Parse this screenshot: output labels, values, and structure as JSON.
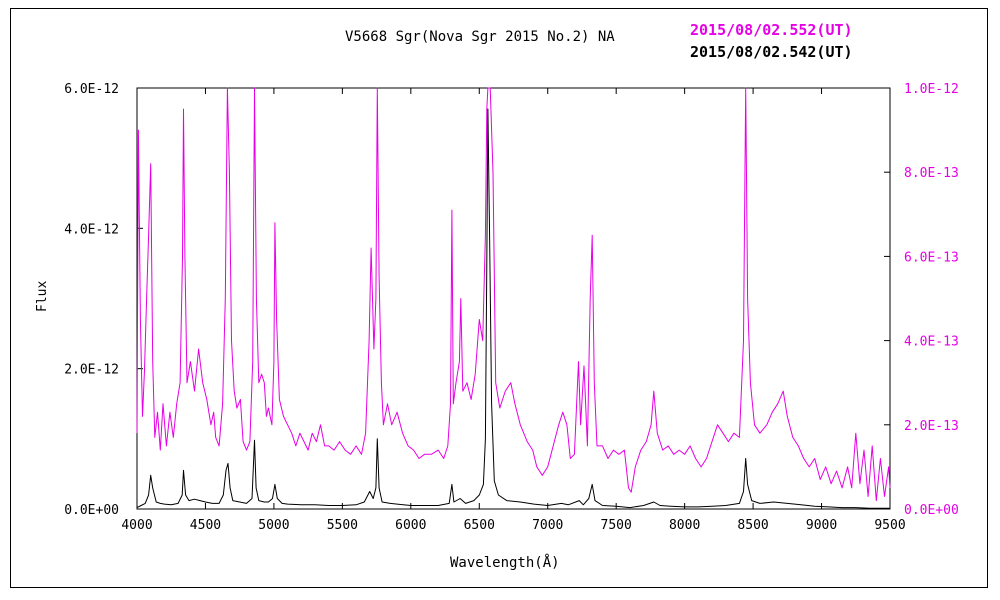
{
  "chart_data": {
    "type": "line",
    "title": "V5668 Sgr(Nova Sgr 2015 No.2)   NA",
    "xlabel": "Wavelength(Å)",
    "ylabel": "Flux",
    "xlim": [
      4000,
      9500
    ],
    "ylim_left": [
      0,
      6e-12
    ],
    "ylim_right": [
      0,
      1e-12
    ],
    "x_ticks": [
      "4000",
      "4500",
      "5000",
      "5500",
      "6000",
      "6500",
      "7000",
      "7500",
      "8000",
      "8500",
      "9000",
      "9500"
    ],
    "y_ticks_left": [
      "0.0E+00",
      "2.0E-12",
      "4.0E-12",
      "6.0E-12"
    ],
    "y_ticks_right": [
      "0.0E+00",
      "2.0E-13",
      "4.0E-13",
      "6.0E-13",
      "8.0E-13",
      "1.0E-12"
    ],
    "grid": false,
    "legend": {
      "placement": "top-right"
    },
    "series": [
      {
        "name": "2015/08/02.552(UT)",
        "axis": "right",
        "color": "#e600e6",
        "points": [
          [
            4000,
            1.8e-13
          ],
          [
            4010,
            9e-13
          ],
          [
            4025,
            4.5e-13
          ],
          [
            4040,
            2.2e-13
          ],
          [
            4055,
            3.3e-13
          ],
          [
            4070,
            5e-13
          ],
          [
            4085,
            6.5e-13
          ],
          [
            4100,
            8.2e-13
          ],
          [
            4115,
            3.5e-13
          ],
          [
            4130,
            1.7e-13
          ],
          [
            4150,
            2.3e-13
          ],
          [
            4170,
            1.4e-13
          ],
          [
            4190,
            2.5e-13
          ],
          [
            4215,
            1.5e-13
          ],
          [
            4240,
            2.3e-13
          ],
          [
            4265,
            1.7e-13
          ],
          [
            4290,
            2.5e-13
          ],
          [
            4315,
            3e-13
          ],
          [
            4332,
            6e-13
          ],
          [
            4340,
            9.5e-13
          ],
          [
            4350,
            6e-13
          ],
          [
            4365,
            3e-13
          ],
          [
            4390,
            3.5e-13
          ],
          [
            4420,
            2.8e-13
          ],
          [
            4450,
            3.8e-13
          ],
          [
            4480,
            3e-13
          ],
          [
            4510,
            2.6e-13
          ],
          [
            4540,
            2e-13
          ],
          [
            4560,
            2.3e-13
          ],
          [
            4575,
            1.7e-13
          ],
          [
            4600,
            1.5e-13
          ],
          [
            4625,
            2.5e-13
          ],
          [
            4645,
            5e-13
          ],
          [
            4660,
            1e-12
          ],
          [
            4675,
            8e-13
          ],
          [
            4690,
            4e-13
          ],
          [
            4710,
            2.8e-13
          ],
          [
            4730,
            2.4e-13
          ],
          [
            4755,
            2.6e-13
          ],
          [
            4775,
            1.6e-13
          ],
          [
            4800,
            1.4e-13
          ],
          [
            4825,
            1.6e-13
          ],
          [
            4845,
            3.5e-13
          ],
          [
            4858,
            1e-12
          ],
          [
            4872,
            5e-13
          ],
          [
            4890,
            3e-13
          ],
          [
            4910,
            3.2e-13
          ],
          [
            4930,
            3e-13
          ],
          [
            4945,
            2.2e-13
          ],
          [
            4960,
            2.4e-13
          ],
          [
            4985,
            2e-13
          ],
          [
            5000,
            3.5e-13
          ],
          [
            5007,
            6.8e-13
          ],
          [
            5020,
            4.5e-13
          ],
          [
            5040,
            2.6e-13
          ],
          [
            5070,
            2.2e-13
          ],
          [
            5100,
            2e-13
          ],
          [
            5130,
            1.8e-13
          ],
          [
            5160,
            1.5e-13
          ],
          [
            5190,
            1.8e-13
          ],
          [
            5220,
            1.6e-13
          ],
          [
            5250,
            1.4e-13
          ],
          [
            5280,
            1.8e-13
          ],
          [
            5310,
            1.6e-13
          ],
          [
            5340,
            2e-13
          ],
          [
            5370,
            1.5e-13
          ],
          [
            5400,
            1.5e-13
          ],
          [
            5440,
            1.4e-13
          ],
          [
            5480,
            1.6e-13
          ],
          [
            5520,
            1.4e-13
          ],
          [
            5560,
            1.3e-13
          ],
          [
            5600,
            1.5e-13
          ],
          [
            5640,
            1.3e-13
          ],
          [
            5670,
            1.8e-13
          ],
          [
            5695,
            4e-13
          ],
          [
            5710,
            6.2e-13
          ],
          [
            5730,
            3.8e-13
          ],
          [
            5745,
            5e-13
          ],
          [
            5755,
            1e-12
          ],
          [
            5768,
            5.5e-13
          ],
          [
            5785,
            3e-13
          ],
          [
            5800,
            2e-13
          ],
          [
            5830,
            2.5e-13
          ],
          [
            5860,
            2e-13
          ],
          [
            5900,
            2.3e-13
          ],
          [
            5940,
            1.8e-13
          ],
          [
            5980,
            1.5e-13
          ],
          [
            6020,
            1.4e-13
          ],
          [
            6060,
            1.2e-13
          ],
          [
            6100,
            1.3e-13
          ],
          [
            6150,
            1.3e-13
          ],
          [
            6200,
            1.4e-13
          ],
          [
            6240,
            1.2e-13
          ],
          [
            6270,
            1.5e-13
          ],
          [
            6290,
            2.5e-13
          ],
          [
            6300,
            7.1e-13
          ],
          [
            6310,
            2.5e-13
          ],
          [
            6330,
            3e-13
          ],
          [
            6355,
            3.5e-13
          ],
          [
            6365,
            5e-13
          ],
          [
            6380,
            2.8e-13
          ],
          [
            6410,
            3e-13
          ],
          [
            6440,
            2.6e-13
          ],
          [
            6470,
            3.2e-13
          ],
          [
            6500,
            4.5e-13
          ],
          [
            6525,
            4e-13
          ],
          [
            6545,
            6.5e-13
          ],
          [
            6555,
            9.5e-13
          ],
          [
            6563,
            1e-12
          ],
          [
            6580,
            1e-12
          ],
          [
            6600,
            8e-13
          ],
          [
            6620,
            3e-13
          ],
          [
            6650,
            2.4e-13
          ],
          [
            6690,
            2.8e-13
          ],
          [
            6730,
            3e-13
          ],
          [
            6760,
            2.5e-13
          ],
          [
            6800,
            2e-13
          ],
          [
            6850,
            1.6e-13
          ],
          [
            6890,
            1.4e-13
          ],
          [
            6920,
            1e-13
          ],
          [
            6960,
            8e-14
          ],
          [
            7000,
            1e-13
          ],
          [
            7040,
            1.5e-13
          ],
          [
            7080,
            2e-13
          ],
          [
            7110,
            2.3e-13
          ],
          [
            7140,
            2e-13
          ],
          [
            7165,
            1.2e-13
          ],
          [
            7195,
            1.3e-13
          ],
          [
            7225,
            3.5e-13
          ],
          [
            7240,
            2e-13
          ],
          [
            7265,
            3.4e-13
          ],
          [
            7290,
            1.5e-13
          ],
          [
            7310,
            5e-13
          ],
          [
            7325,
            6.5e-13
          ],
          [
            7340,
            3e-13
          ],
          [
            7360,
            1.5e-13
          ],
          [
            7400,
            1.5e-13
          ],
          [
            7440,
            1.2e-13
          ],
          [
            7480,
            1.4e-13
          ],
          [
            7520,
            1.3e-13
          ],
          [
            7560,
            1.4e-13
          ],
          [
            7590,
            5e-14
          ],
          [
            7610,
            4e-14
          ],
          [
            7640,
            1e-13
          ],
          [
            7680,
            1.4e-13
          ],
          [
            7720,
            1.6e-13
          ],
          [
            7755,
            2e-13
          ],
          [
            7775,
            2.8e-13
          ],
          [
            7800,
            1.8e-13
          ],
          [
            7840,
            1.4e-13
          ],
          [
            7880,
            1.5e-13
          ],
          [
            7920,
            1.3e-13
          ],
          [
            7960,
            1.4e-13
          ],
          [
            8000,
            1.3e-13
          ],
          [
            8040,
            1.5e-13
          ],
          [
            8080,
            1.2e-13
          ],
          [
            8120,
            1e-13
          ],
          [
            8160,
            1.2e-13
          ],
          [
            8200,
            1.6e-13
          ],
          [
            8240,
            2e-13
          ],
          [
            8280,
            1.8e-13
          ],
          [
            8320,
            1.6e-13
          ],
          [
            8360,
            1.8e-13
          ],
          [
            8400,
            1.7e-13
          ],
          [
            8430,
            4e-13
          ],
          [
            8446,
            1e-12
          ],
          [
            8460,
            5e-13
          ],
          [
            8480,
            3e-13
          ],
          [
            8510,
            2e-13
          ],
          [
            8550,
            1.8e-13
          ],
          [
            8600,
            2e-13
          ],
          [
            8640,
            2.3e-13
          ],
          [
            8680,
            2.5e-13
          ],
          [
            8720,
            2.8e-13
          ],
          [
            8750,
            2.2e-13
          ],
          [
            8790,
            1.7e-13
          ],
          [
            8830,
            1.5e-13
          ],
          [
            8870,
            1.2e-13
          ],
          [
            8910,
            1e-13
          ],
          [
            8950,
            1.2e-13
          ],
          [
            8990,
            7e-14
          ],
          [
            9030,
            1e-13
          ],
          [
            9070,
            6e-14
          ],
          [
            9110,
            9e-14
          ],
          [
            9150,
            5e-14
          ],
          [
            9190,
            1e-13
          ],
          [
            9220,
            5e-14
          ],
          [
            9250,
            1.8e-13
          ],
          [
            9280,
            6e-14
          ],
          [
            9310,
            1.4e-13
          ],
          [
            9340,
            3e-14
          ],
          [
            9370,
            1.5e-13
          ],
          [
            9400,
            2e-14
          ],
          [
            9430,
            1.2e-13
          ],
          [
            9460,
            3e-14
          ],
          [
            9490,
            1e-13
          ],
          [
            9500,
            5e-14
          ]
        ]
      },
      {
        "name": "2015/08/02.542(UT)",
        "axis": "left",
        "color": "#000000",
        "points": [
          [
            4000,
            2e-14
          ],
          [
            4030,
            5e-14
          ],
          [
            4060,
            8e-14
          ],
          [
            4085,
            2e-13
          ],
          [
            4100,
            4.8e-13
          ],
          [
            4115,
            3e-13
          ],
          [
            4140,
            1e-13
          ],
          [
            4170,
            8e-14
          ],
          [
            4200,
            7e-14
          ],
          [
            4250,
            6e-14
          ],
          [
            4300,
            8e-14
          ],
          [
            4330,
            2e-13
          ],
          [
            4340,
            5.5e-13
          ],
          [
            4355,
            2e-13
          ],
          [
            4380,
            1.2e-13
          ],
          [
            4420,
            1.4e-13
          ],
          [
            4460,
            1.2e-13
          ],
          [
            4500,
            1e-13
          ],
          [
            4550,
            8e-14
          ],
          [
            4600,
            8e-14
          ],
          [
            4630,
            2e-13
          ],
          [
            4650,
            5.5e-13
          ],
          [
            4665,
            6.5e-13
          ],
          [
            4680,
            3e-13
          ],
          [
            4700,
            1.2e-13
          ],
          [
            4750,
            1e-13
          ],
          [
            4800,
            8e-14
          ],
          [
            4840,
            1.5e-13
          ],
          [
            4858,
            9.8e-13
          ],
          [
            4870,
            3e-13
          ],
          [
            4890,
            1.2e-13
          ],
          [
            4930,
            1e-13
          ],
          [
            4960,
            1e-13
          ],
          [
            4990,
            1.5e-13
          ],
          [
            5007,
            3.5e-13
          ],
          [
            5025,
            1.5e-13
          ],
          [
            5060,
            8e-14
          ],
          [
            5100,
            7e-14
          ],
          [
            5200,
            6e-14
          ],
          [
            5300,
            6e-14
          ],
          [
            5400,
            5e-14
          ],
          [
            5500,
            5e-14
          ],
          [
            5600,
            6e-14
          ],
          [
            5660,
            1e-13
          ],
          [
            5700,
            2.5e-13
          ],
          [
            5725,
            1.5e-13
          ],
          [
            5745,
            3e-13
          ],
          [
            5755,
            1e-12
          ],
          [
            5768,
            3e-13
          ],
          [
            5790,
            1e-13
          ],
          [
            5850,
            8e-14
          ],
          [
            5900,
            7e-14
          ],
          [
            6000,
            5e-14
          ],
          [
            6100,
            5e-14
          ],
          [
            6200,
            5e-14
          ],
          [
            6280,
            8e-14
          ],
          [
            6300,
            3.5e-13
          ],
          [
            6315,
            1e-13
          ],
          [
            6360,
            1.5e-13
          ],
          [
            6400,
            8e-14
          ],
          [
            6460,
            1.2e-13
          ],
          [
            6500,
            2e-13
          ],
          [
            6530,
            3.5e-13
          ],
          [
            6545,
            1e-12
          ],
          [
            6555,
            3.5e-12
          ],
          [
            6563,
            5.7e-12
          ],
          [
            6575,
            4e-12
          ],
          [
            6590,
            1.5e-12
          ],
          [
            6610,
            4e-13
          ],
          [
            6640,
            2e-13
          ],
          [
            6700,
            1.2e-13
          ],
          [
            6800,
            1e-13
          ],
          [
            6900,
            7e-14
          ],
          [
            7000,
            5e-14
          ],
          [
            7100,
            8e-14
          ],
          [
            7150,
            6e-14
          ],
          [
            7230,
            1.2e-13
          ],
          [
            7260,
            6e-14
          ],
          [
            7300,
            1.5e-13
          ],
          [
            7325,
            3.5e-13
          ],
          [
            7345,
            1.2e-13
          ],
          [
            7400,
            5e-14
          ],
          [
            7500,
            4e-14
          ],
          [
            7600,
            2e-14
          ],
          [
            7700,
            5e-14
          ],
          [
            7775,
            1e-13
          ],
          [
            7820,
            5e-14
          ],
          [
            7900,
            4e-14
          ],
          [
            8000,
            3e-14
          ],
          [
            8100,
            3e-14
          ],
          [
            8200,
            4e-14
          ],
          [
            8300,
            5e-14
          ],
          [
            8400,
            8e-14
          ],
          [
            8430,
            2.5e-13
          ],
          [
            8446,
            7.2e-13
          ],
          [
            8460,
            3.5e-13
          ],
          [
            8490,
            1.2e-13
          ],
          [
            8550,
            8e-14
          ],
          [
            8650,
            1e-13
          ],
          [
            8750,
            8e-14
          ],
          [
            8850,
            6e-14
          ],
          [
            8950,
            4e-14
          ],
          [
            9050,
            3e-14
          ],
          [
            9150,
            2e-14
          ],
          [
            9250,
            2e-14
          ],
          [
            9350,
            1e-14
          ],
          [
            9450,
            1e-14
          ],
          [
            9500,
            1e-14
          ]
        ]
      }
    ]
  }
}
